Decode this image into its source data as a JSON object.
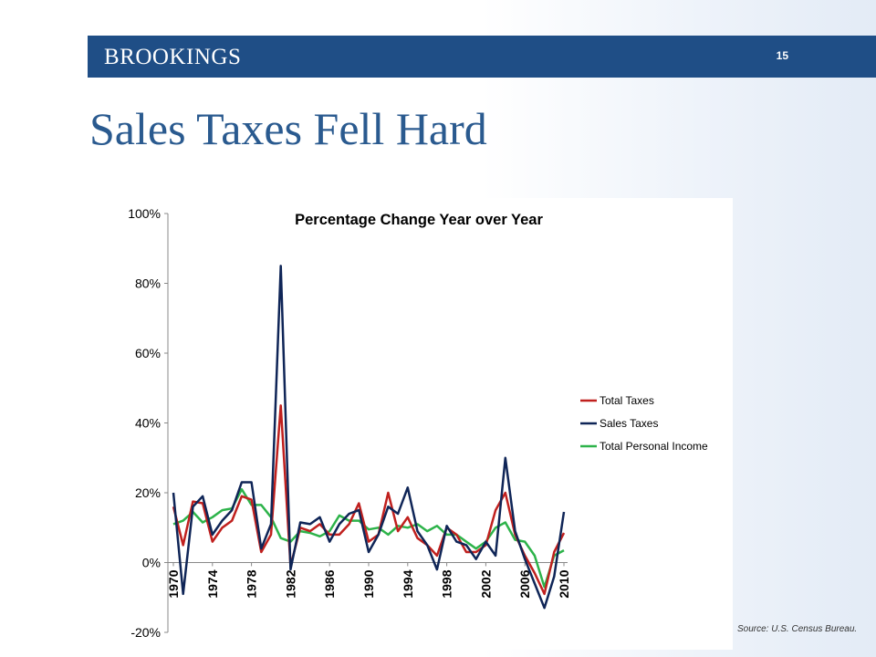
{
  "header": {
    "brand": "BROOKINGS",
    "page_number": "15"
  },
  "slide": {
    "title": "Sales Taxes Fell Hard"
  },
  "source": "Source:  U.S. Census Bureau.",
  "chart_data": {
    "type": "line",
    "title": "Percentage Change Year over Year",
    "xlabel": "",
    "ylabel": "",
    "ylim": [
      -20,
      100
    ],
    "y_ticks": [
      100,
      80,
      60,
      40,
      20,
      0,
      -20
    ],
    "y_tick_labels": [
      "100%",
      "80%",
      "60%",
      "40%",
      "20%",
      "0%",
      "-20%"
    ],
    "x_ticks": [
      1970,
      1974,
      1978,
      1982,
      1986,
      1990,
      1994,
      1998,
      2002,
      2006,
      2010
    ],
    "x_tick_labels": [
      "1970",
      "1974",
      "1978",
      "1982",
      "1986",
      "1990",
      "1994",
      "1998",
      "2002",
      "2006",
      "2010"
    ],
    "grid": false,
    "legend_position": "right",
    "x": [
      1970,
      1971,
      1972,
      1973,
      1974,
      1975,
      1976,
      1977,
      1978,
      1979,
      1980,
      1981,
      1982,
      1983,
      1984,
      1985,
      1986,
      1987,
      1988,
      1989,
      1990,
      1991,
      1992,
      1993,
      1994,
      1995,
      1996,
      1997,
      1998,
      1999,
      2000,
      2001,
      2002,
      2003,
      2004,
      2005,
      2006,
      2007,
      2008,
      2009,
      2010
    ],
    "series": [
      {
        "name": "Total Taxes",
        "color": "#c0201e",
        "values": [
          16,
          5,
          17.5,
          17,
          6,
          10,
          12,
          19,
          18,
          3,
          8,
          45,
          -1,
          10,
          9,
          11,
          8,
          8,
          11,
          17,
          6,
          8,
          20,
          9,
          13,
          7,
          5,
          2,
          10,
          8,
          3,
          3,
          5,
          15,
          20,
          8,
          2,
          -3,
          -9,
          3,
          8.5
        ]
      },
      {
        "name": "Sales Taxes",
        "color": "#0f2557",
        "values": [
          20,
          -9,
          16,
          19,
          8,
          12,
          15,
          23,
          23,
          4,
          11,
          85,
          -2,
          11.5,
          11,
          13,
          6,
          11,
          14,
          15,
          3,
          8,
          16,
          14,
          21.5,
          9,
          5,
          -2,
          10.5,
          6,
          5,
          1,
          6,
          2,
          30,
          9,
          1,
          -6,
          -13,
          -4,
          14.5
        ]
      },
      {
        "name": "Total Personal Income",
        "color": "#2db34a",
        "values": [
          11,
          12,
          14.5,
          11.5,
          13,
          15,
          15.5,
          21,
          16.5,
          16.5,
          13,
          7,
          6,
          9,
          8.5,
          7.5,
          9,
          13.5,
          12,
          12,
          9.5,
          10,
          8,
          10.5,
          10,
          11,
          9,
          10.5,
          8,
          8,
          6,
          4,
          6,
          10,
          11.5,
          6.5,
          6,
          2,
          -7,
          2,
          3.5
        ]
      }
    ]
  }
}
